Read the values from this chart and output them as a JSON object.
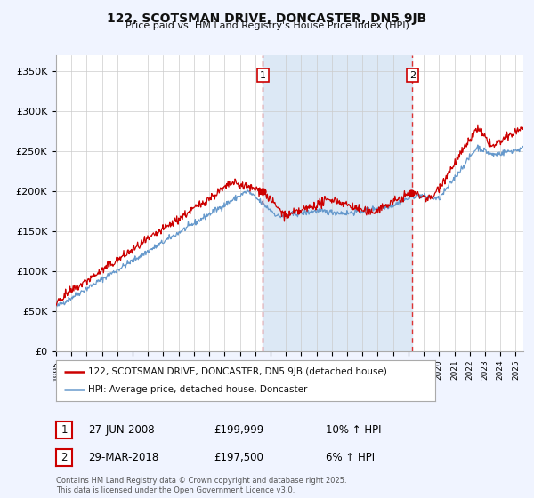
{
  "title": "122, SCOTSMAN DRIVE, DONCASTER, DN5 9JB",
  "subtitle": "Price paid vs. HM Land Registry's House Price Index (HPI)",
  "legend_label_red": "122, SCOTSMAN DRIVE, DONCASTER, DN5 9JB (detached house)",
  "legend_label_blue": "HPI: Average price, detached house, Doncaster",
  "sale1_date": "27-JUN-2008",
  "sale1_price": "£199,999",
  "sale1_hpi": "10% ↑ HPI",
  "sale2_date": "29-MAR-2018",
  "sale2_price": "£197,500",
  "sale2_hpi": "6% ↑ HPI",
  "footer": "Contains HM Land Registry data © Crown copyright and database right 2025.\nThis data is licensed under the Open Government Licence v3.0.",
  "vline1_t": 2008.5,
  "vline2_t": 2018.25,
  "sale1_t": 2008.46,
  "sale1_v": 200000,
  "sale2_t": 2018.2,
  "sale2_v": 197500,
  "ylim_max": 370000,
  "xlim_start": 1995.0,
  "xlim_end": 2025.5,
  "background_color": "#f0f4ff",
  "plot_bg": "#ffffff",
  "red_color": "#cc0000",
  "blue_color": "#6699cc",
  "vline_color": "#dd3333",
  "shade_color": "#dce8f5",
  "grid_color": "#cccccc"
}
